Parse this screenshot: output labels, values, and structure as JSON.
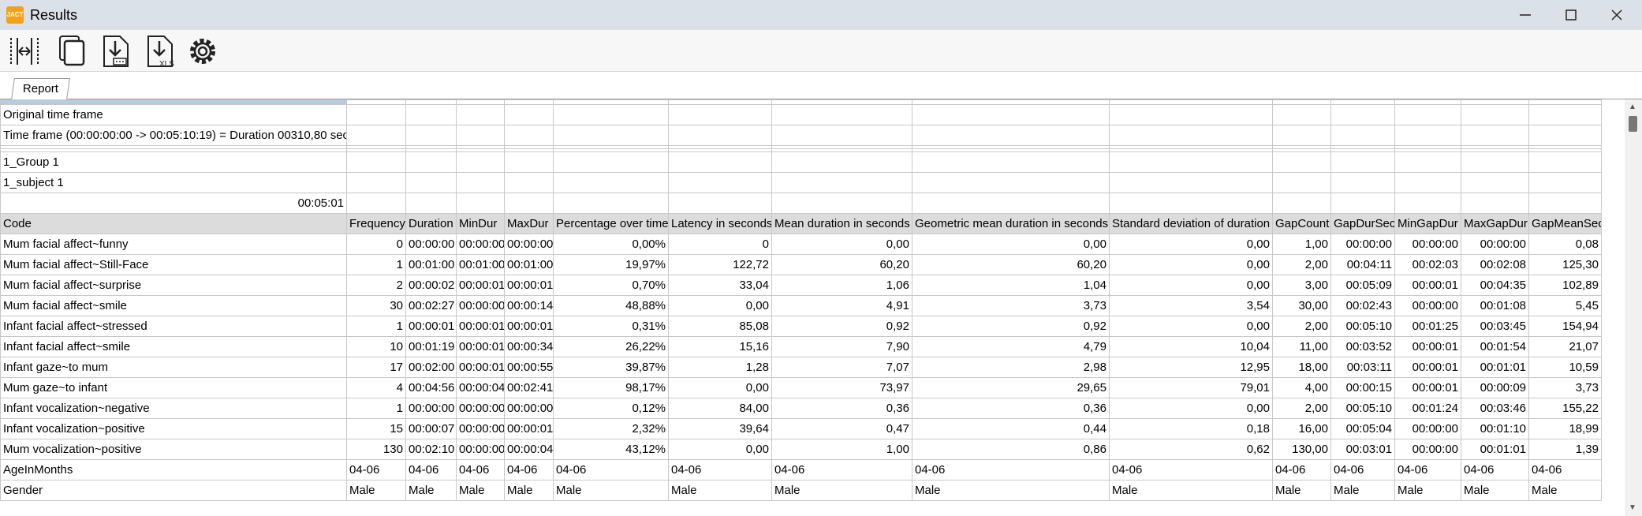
{
  "window": {
    "title": "Results",
    "app_icon_text": "JACT"
  },
  "toolbar": {
    "buttons": [
      {
        "name": "columns-icon"
      },
      {
        "name": "copy-icon"
      },
      {
        "name": "export-text-icon"
      },
      {
        "name": "export-xls-icon",
        "text": "XLS"
      },
      {
        "name": "settings-icon"
      }
    ]
  },
  "tabs": {
    "report": "Report"
  },
  "report": {
    "original_time_frame": "Original time frame",
    "time_frame": "Time frame  (00:00:00:00 -> 00:05:10:19) = Duration 00310,80 sec",
    "group": "1_Group 1",
    "subject": "1_subject 1",
    "total_duration": "00:05:01"
  },
  "columns": [
    "Code",
    "Frequency",
    "Duration",
    "MinDur",
    "MaxDur",
    "Percentage over time",
    "Latency in seconds",
    "Mean duration in seconds",
    "Geometric mean duration in seconds",
    "Standard deviation of duration",
    "GapCount",
    "GapDurSec",
    "MinGapDur",
    "MaxGapDur",
    "GapMeanSec"
  ],
  "rows": [
    [
      "Mum facial affect~funny",
      "0",
      "00:00:00",
      "00:00:00",
      "00:00:00",
      "0,00%",
      "0",
      "0,00",
      "0,00",
      "0,00",
      "1,00",
      "00:00:00",
      "00:00:00",
      "00:00:00",
      "0,08"
    ],
    [
      "Mum facial affect~Still-Face",
      "1",
      "00:01:00",
      "00:01:00",
      "00:01:00",
      "19,97%",
      "122,72",
      "60,20",
      "60,20",
      "0,00",
      "2,00",
      "00:04:11",
      "00:02:03",
      "00:02:08",
      "125,30"
    ],
    [
      "Mum facial affect~surprise",
      "2",
      "00:00:02",
      "00:00:01",
      "00:00:01",
      "0,70%",
      "33,04",
      "1,06",
      "1,04",
      "0,00",
      "3,00",
      "00:05:09",
      "00:00:01",
      "00:04:35",
      "102,89"
    ],
    [
      "Mum facial affect~smile",
      "30",
      "00:02:27",
      "00:00:00",
      "00:00:14",
      "48,88%",
      "0,00",
      "4,91",
      "3,73",
      "3,54",
      "30,00",
      "00:02:43",
      "00:00:00",
      "00:01:08",
      "5,45"
    ],
    [
      "Infant facial affect~stressed",
      "1",
      "00:00:01",
      "00:00:01",
      "00:00:01",
      "0,31%",
      "85,08",
      "0,92",
      "0,92",
      "0,00",
      "2,00",
      "00:05:10",
      "00:01:25",
      "00:03:45",
      "154,94"
    ],
    [
      "Infant facial affect~smile",
      "10",
      "00:01:19",
      "00:00:01",
      "00:00:34",
      "26,22%",
      "15,16",
      "7,90",
      "4,79",
      "10,04",
      "11,00",
      "00:03:52",
      "00:00:01",
      "00:01:54",
      "21,07"
    ],
    [
      "Infant gaze~to mum",
      "17",
      "00:02:00",
      "00:00:01",
      "00:00:55",
      "39,87%",
      "1,28",
      "7,07",
      "2,98",
      "12,95",
      "18,00",
      "00:03:11",
      "00:00:01",
      "00:01:01",
      "10,59"
    ],
    [
      "Mum gaze~to infant",
      "4",
      "00:04:56",
      "00:00:04",
      "00:02:41",
      "98,17%",
      "0,00",
      "73,97",
      "29,65",
      "79,01",
      "4,00",
      "00:00:15",
      "00:00:01",
      "00:00:09",
      "3,73"
    ],
    [
      "Infant vocalization~negative",
      "1",
      "00:00:00",
      "00:00:00",
      "00:00:00",
      "0,12%",
      "84,00",
      "0,36",
      "0,36",
      "0,00",
      "2,00",
      "00:05:10",
      "00:01:24",
      "00:03:46",
      "155,22"
    ],
    [
      "Infant vocalization~positive",
      "15",
      "00:00:07",
      "00:00:00",
      "00:00:01",
      "2,32%",
      "39,64",
      "0,47",
      "0,44",
      "0,18",
      "16,00",
      "00:05:04",
      "00:00:00",
      "00:01:10",
      "18,99"
    ],
    [
      "Mum vocalization~positive",
      "130",
      "00:02:10",
      "00:00:00",
      "00:00:04",
      "43,12%",
      "0,00",
      "1,00",
      "0,86",
      "0,62",
      "130,00",
      "00:03:01",
      "00:00:00",
      "00:01:01",
      "1,39"
    ]
  ],
  "age_row": {
    "label": "AgeInMonths",
    "value": "04-06"
  },
  "gender_row": {
    "label": "Gender",
    "value": "Male"
  }
}
